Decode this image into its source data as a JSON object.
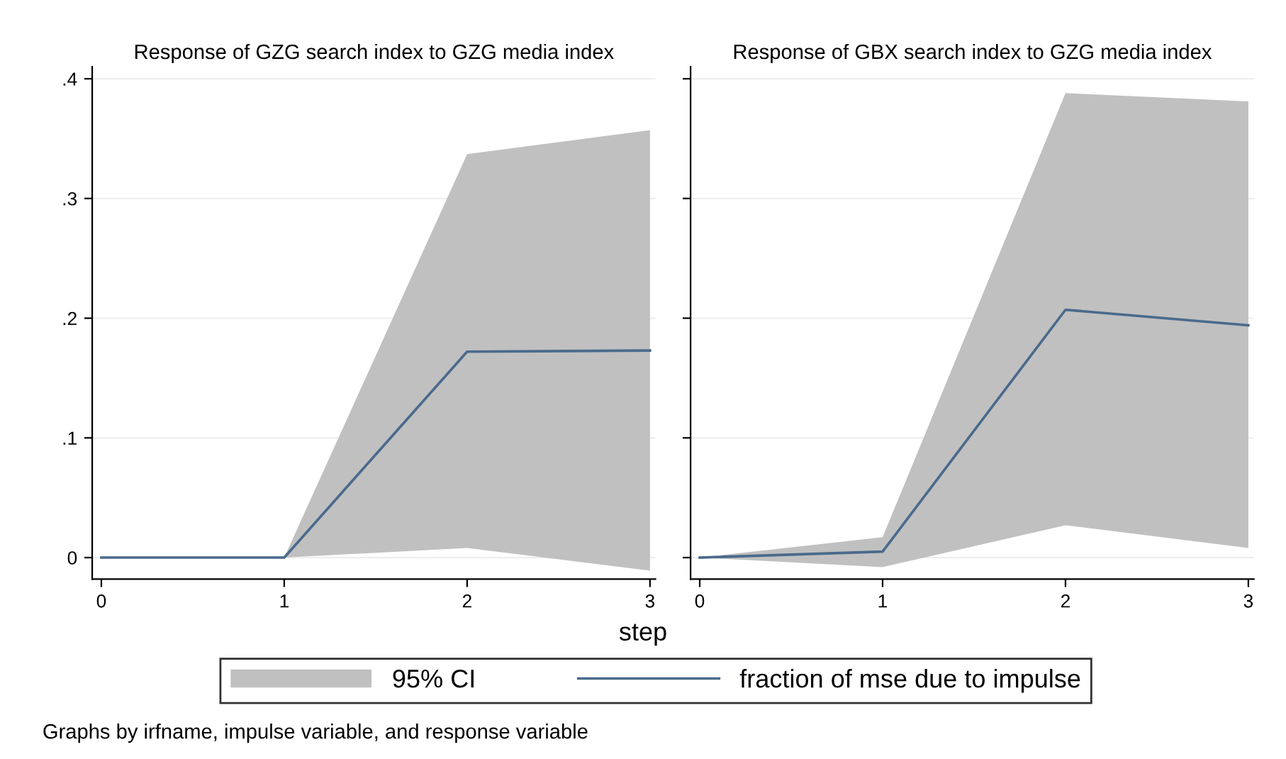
{
  "chart_data": [
    {
      "type": "line",
      "title": "Response of GZG search index to GZG media index",
      "xlabel": "step",
      "x": [
        0,
        1,
        2,
        3
      ],
      "xlim": [
        -0.05,
        3.03
      ],
      "xticks": [
        0,
        1,
        2,
        3
      ],
      "ylim": [
        -0.018,
        0.41
      ],
      "yticks": [
        0,
        {
          "value": 0.1,
          "label": ".1"
        },
        {
          "value": 0.2,
          "label": ".2"
        },
        {
          "value": 0.3,
          "label": ".3"
        },
        {
          "value": 0.4,
          "label": ".4"
        }
      ],
      "grid": "y",
      "legend": "bottom",
      "series": [
        {
          "name": "fraction of mse due to impulse",
          "color": "#4a6a8c",
          "values": [
            0,
            0,
            0.172,
            0.173
          ],
          "lower": [
            0,
            0,
            0.008,
            -0.011
          ],
          "upper": [
            0,
            0,
            0.337,
            0.357
          ]
        }
      ],
      "annotations": [
        "95% CI",
        "Graphs by irfname, impulse variable, and response variable"
      ]
    },
    {
      "type": "line",
      "title": "Response of GBX search index to GZG media index",
      "x": [
        0,
        1,
        2,
        3
      ],
      "xlim": [
        -0.05,
        3.03
      ],
      "xticks": [
        0,
        1,
        2,
        3
      ],
      "ylim": [
        -0.018,
        0.41
      ],
      "yticks": [
        {
          "value": 0,
          "label": null
        },
        {
          "value": 0.1,
          "label": null
        },
        {
          "value": 0.2,
          "label": null
        },
        {
          "value": 0.3,
          "label": null
        },
        {
          "value": 0.4,
          "label": null
        }
      ],
      "grid": "y",
      "tick_labels": "x",
      "series": [
        {
          "color": "#4a6a8c",
          "values": [
            0,
            0.005,
            0.207,
            0.194
          ],
          "lower": [
            0,
            -0.008,
            0.027,
            0.008
          ],
          "upper": [
            0,
            0.017,
            0.388,
            0.381
          ]
        }
      ]
    }
  ]
}
